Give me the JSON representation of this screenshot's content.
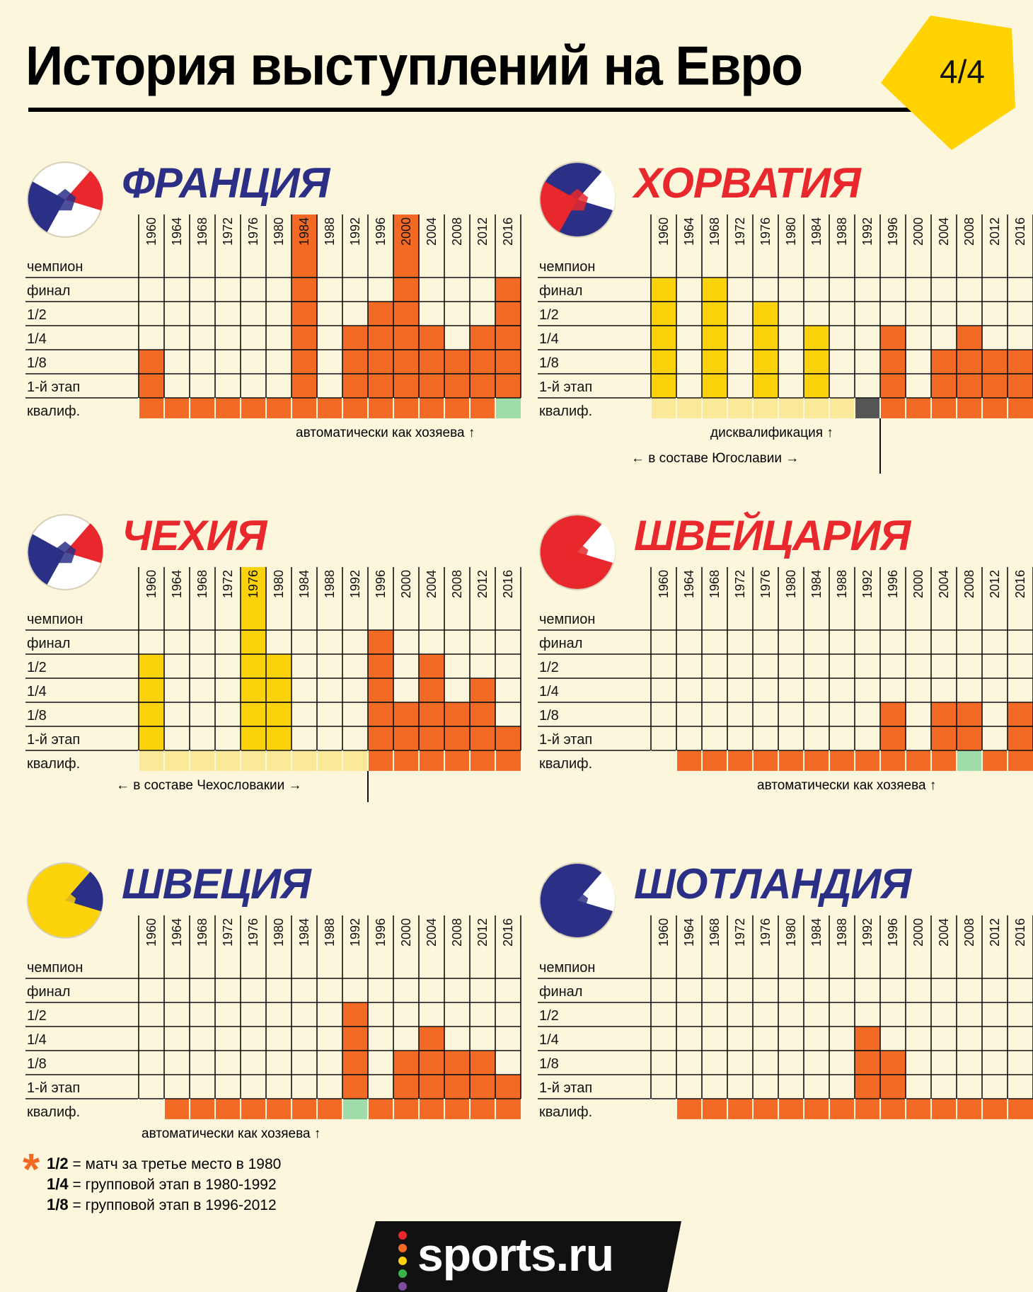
{
  "header": {
    "title": "История выступлений на Евро",
    "page": "4/4"
  },
  "row_labels": [
    "чемпион",
    "финал",
    "1/2",
    "1/4",
    "1/8",
    "1-й этап",
    "квалиф."
  ],
  "footnote": [
    {
      "key": "1/2",
      "text": "= матч за третье место в 1980"
    },
    {
      "key": "1/4",
      "text": "= групповой этап в 1980-1992"
    },
    {
      "key": "1/8",
      "text": "= групповой этап в 1996-2012"
    }
  ],
  "logo": "sports.ru",
  "colors": {
    "orange": "#f26a24",
    "yellow": "#fcd20a",
    "orange_light": "#fbc193",
    "yellow_light": "#fbe99a",
    "green": "#9fdcaa",
    "dark": "#555555",
    "grid": "#111111",
    "blue": "#2b2f86",
    "red": "#e8282c"
  },
  "chart_data": [
    {
      "type": "table",
      "country": "ФРАНЦИЯ",
      "title_color": "#2b2f86",
      "years": [
        "1960",
        "1964",
        "1968",
        "1972",
        "1976",
        "1980",
        "1984",
        "1988",
        "1992",
        "1996",
        "2000",
        "2004",
        "2008",
        "2012",
        "2016"
      ],
      "highlight_years": [
        "1984",
        "2000"
      ],
      "stage_reached": [
        2,
        null,
        null,
        null,
        null,
        null,
        6,
        null,
        3,
        4,
        6,
        3,
        2,
        3,
        5
      ],
      "qualification": [
        "orange",
        "orange",
        "orange",
        "orange",
        "orange",
        "orange",
        "orange",
        "orange",
        "orange",
        "orange",
        "orange",
        "orange",
        "orange",
        "orange",
        "green"
      ],
      "bar_color": "orange",
      "annotations": [
        {
          "text": "автоматически как хозяева",
          "arrow": "↑"
        }
      ]
    },
    {
      "type": "table",
      "country": "ХОРВАТИЯ",
      "title_color": "#e8282c",
      "years": [
        "1960",
        "1964",
        "1968",
        "1972",
        "1976",
        "1980",
        "1984",
        "1988",
        "1992",
        "1996",
        "2000",
        "2004",
        "2008",
        "2012",
        "2016"
      ],
      "highlight_years": [],
      "stage_reached": [
        5,
        null,
        5,
        null,
        4,
        null,
        3,
        null,
        null,
        3,
        null,
        2,
        3,
        2,
        2
      ],
      "bar_colors": [
        "yellow",
        "yellow",
        "yellow",
        "yellow",
        "yellow",
        "yellow",
        "yellow",
        "yellow",
        "dark",
        "orange",
        "orange",
        "orange",
        "orange",
        "orange",
        "orange"
      ],
      "qualification": [
        "yellow_light",
        "yellow_light",
        "yellow_light",
        "yellow_light",
        "yellow_light",
        "yellow_light",
        "yellow_light",
        "yellow_light",
        "dark",
        "orange",
        "orange",
        "orange",
        "orange",
        "orange",
        "orange"
      ],
      "annotations": [
        {
          "text": "дисквалификация",
          "arrow": "↑"
        },
        {
          "text": "в составе Югославии",
          "arrow_left": "←",
          "arrow_right": "→"
        }
      ]
    },
    {
      "type": "table",
      "country": "ЧЕХИЯ",
      "title_color": "#e8282c",
      "years": [
        "1960",
        "1964",
        "1968",
        "1972",
        "1976",
        "1980",
        "1984",
        "1988",
        "1992",
        "1996",
        "2000",
        "2004",
        "2008",
        "2012",
        "2016"
      ],
      "highlight_years": [
        "1976"
      ],
      "stage_reached": [
        4,
        null,
        null,
        null,
        6,
        4,
        null,
        null,
        null,
        5,
        2,
        4,
        2,
        3,
        1
      ],
      "bar_colors": [
        "yellow",
        "yellow",
        "yellow",
        "yellow",
        "yellow",
        "yellow",
        "yellow",
        "yellow",
        "yellow",
        "orange",
        "orange",
        "orange",
        "orange",
        "orange",
        "orange"
      ],
      "qualification": [
        "yellow_light",
        "yellow_light",
        "yellow_light",
        "yellow_light",
        "yellow_light",
        "yellow_light",
        "yellow_light",
        "yellow_light",
        "yellow_light",
        "orange",
        "orange",
        "orange",
        "orange",
        "orange",
        "orange"
      ],
      "annotations": [
        {
          "text": "в составе Чехословакии",
          "arrow_left": "←",
          "arrow_right": "→"
        }
      ]
    },
    {
      "type": "table",
      "country": "ШВЕЙЦАРИЯ",
      "title_color": "#e8282c",
      "years": [
        "1960",
        "1964",
        "1968",
        "1972",
        "1976",
        "1980",
        "1984",
        "1988",
        "1992",
        "1996",
        "2000",
        "2004",
        "2008",
        "2012",
        "2016"
      ],
      "highlight_years": [],
      "stage_reached": [
        null,
        null,
        null,
        null,
        null,
        null,
        null,
        null,
        null,
        2,
        null,
        2,
        2,
        null,
        2
      ],
      "bar_color": "orange",
      "qualification": [
        "bg",
        "orange",
        "orange",
        "orange",
        "orange",
        "orange",
        "orange",
        "orange",
        "orange",
        "orange",
        "orange",
        "orange",
        "green",
        "orange",
        "orange"
      ],
      "annotations": [
        {
          "text": "автоматически как хозяева",
          "arrow": "↑"
        }
      ]
    },
    {
      "type": "table",
      "country": "ШВЕЦИЯ",
      "title_color": "#2b2f86",
      "years": [
        "1960",
        "1964",
        "1968",
        "1972",
        "1976",
        "1980",
        "1984",
        "1988",
        "1992",
        "1996",
        "2000",
        "2004",
        "2008",
        "2012",
        "2016"
      ],
      "highlight_years": [],
      "stage_reached": [
        null,
        null,
        null,
        null,
        null,
        null,
        null,
        null,
        4,
        null,
        2,
        3,
        2,
        2,
        1
      ],
      "bar_color": "orange",
      "qualification": [
        "bg",
        "orange",
        "orange",
        "orange",
        "orange",
        "orange",
        "orange",
        "orange",
        "green",
        "orange",
        "orange",
        "orange",
        "orange",
        "orange",
        "orange"
      ],
      "annotations": [
        {
          "text": "автоматически как хозяева",
          "arrow": "↑"
        }
      ]
    },
    {
      "type": "table",
      "country": "ШОТЛАНДИЯ",
      "title_color": "#2b2f86",
      "years": [
        "1960",
        "1964",
        "1968",
        "1972",
        "1976",
        "1980",
        "1984",
        "1988",
        "1992",
        "1996",
        "2000",
        "2004",
        "2008",
        "2012",
        "2016"
      ],
      "highlight_years": [],
      "stage_reached": [
        null,
        null,
        null,
        null,
        null,
        null,
        null,
        null,
        3,
        2,
        null,
        null,
        null,
        null,
        null
      ],
      "bar_color": "orange",
      "qualification": [
        "bg",
        "orange",
        "orange",
        "orange",
        "orange",
        "orange",
        "orange",
        "orange",
        "orange",
        "orange",
        "orange",
        "orange",
        "orange",
        "orange",
        "orange"
      ],
      "annotations": []
    }
  ]
}
